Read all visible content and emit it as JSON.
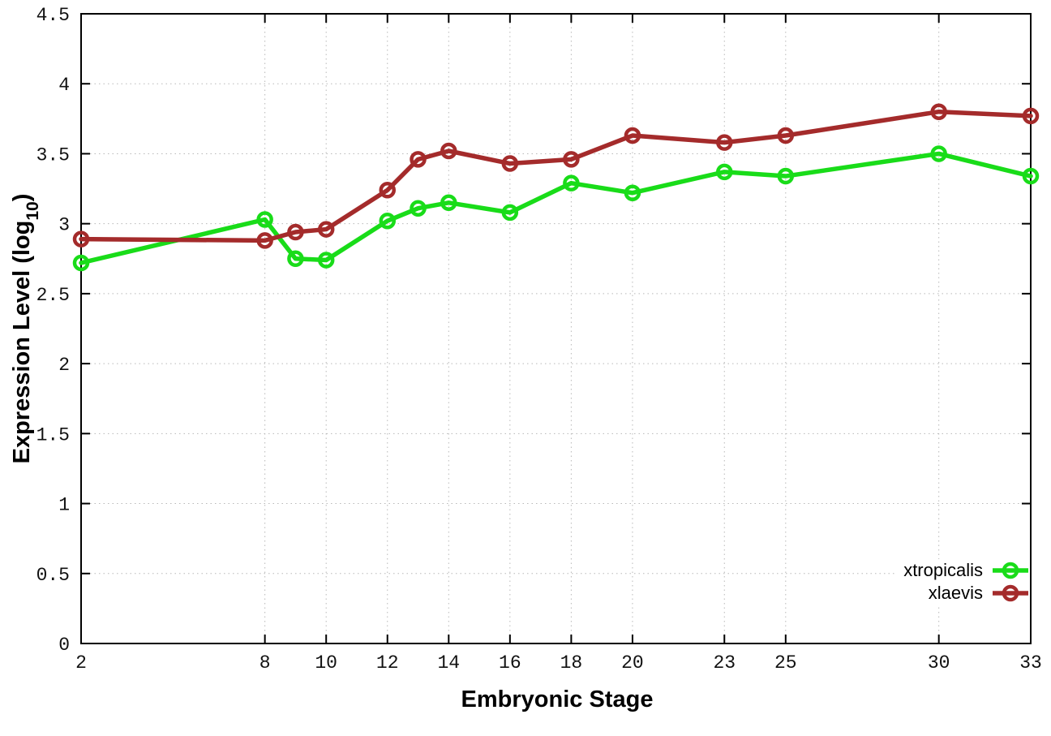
{
  "chart_data": {
    "type": "line",
    "title": "",
    "xlabel": "Embryonic Stage",
    "ylabel": "Expression Level (log10)",
    "ylabel_parts": [
      "Expression Level (log",
      "10",
      ")"
    ],
    "xlim": [
      2,
      33
    ],
    "ylim": [
      0,
      4.5
    ],
    "grid": true,
    "grid_style": "dotted",
    "legend_position": "inside bottom-right",
    "x_ticks": [
      2,
      8,
      10,
      12,
      14,
      16,
      18,
      20,
      23,
      25,
      30,
      33
    ],
    "x_tick_labels": [
      "2",
      "8",
      "10",
      "12",
      "14",
      "16",
      "18",
      "20",
      "23",
      "25",
      "30",
      "33"
    ],
    "y_ticks": [
      0,
      0.5,
      1,
      1.5,
      2,
      2.5,
      3,
      3.5,
      4,
      4.5
    ],
    "y_tick_labels": [
      "0",
      "0.5",
      "1",
      "1.5",
      "2",
      "2.5",
      "3",
      "3.5",
      "4",
      "4.5"
    ],
    "x": [
      2,
      8,
      9,
      10,
      12,
      13,
      14,
      16,
      18,
      20,
      23,
      25,
      30,
      33
    ],
    "series": [
      {
        "name": "xtropicalis",
        "color": "#19DC19",
        "values": [
          2.72,
          3.03,
          2.75,
          2.74,
          3.02,
          3.11,
          3.15,
          3.08,
          3.29,
          3.22,
          3.37,
          3.34,
          3.5,
          3.34
        ]
      },
      {
        "name": "xlaevis",
        "color": "#A42B2B",
        "values": [
          2.89,
          2.88,
          2.94,
          2.96,
          3.24,
          3.46,
          3.52,
          3.43,
          3.46,
          3.63,
          3.58,
          3.63,
          3.8,
          3.77
        ]
      }
    ]
  },
  "colors": {
    "background": "#ffffff",
    "border": "#000000",
    "grid": "#b8b8b8",
    "tick_text": "#111111"
  }
}
